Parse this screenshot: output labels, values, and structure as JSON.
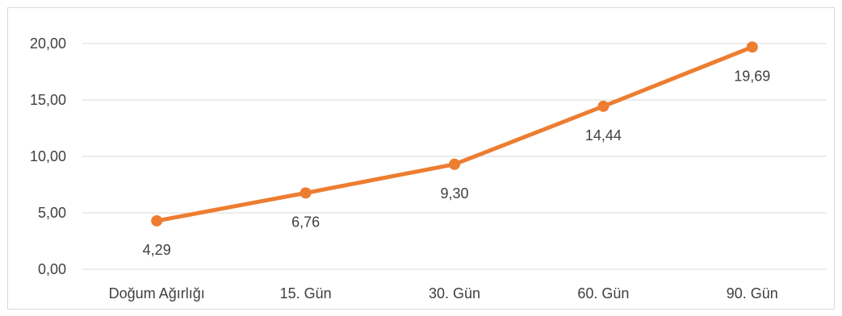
{
  "chart_data": {
    "type": "line",
    "title": "",
    "xlabel": "",
    "ylabel": "",
    "categories": [
      "Doğum Ağırlığı",
      "15. Gün",
      "30. Gün",
      "60. Gün",
      "90. Gün"
    ],
    "series": [
      {
        "values": [
          4.29,
          6.76,
          9.3,
          14.44,
          19.69
        ],
        "data_labels": [
          "4,29",
          "6,76",
          "9,30",
          "14,44",
          "19,69"
        ],
        "color": "#ED7D31"
      }
    ],
    "y_ticks": [
      0,
      5,
      10,
      15,
      20
    ],
    "y_tick_labels": [
      "0,00",
      "5,00",
      "10,00",
      "15,00",
      "20,00"
    ],
    "ylim": [
      0,
      20
    ],
    "grid": true,
    "legend": "none",
    "colors": {
      "line": "#ED7D31",
      "gridline": "#d9d9d9",
      "text": "#404040",
      "border": "#d9d9d9"
    }
  }
}
